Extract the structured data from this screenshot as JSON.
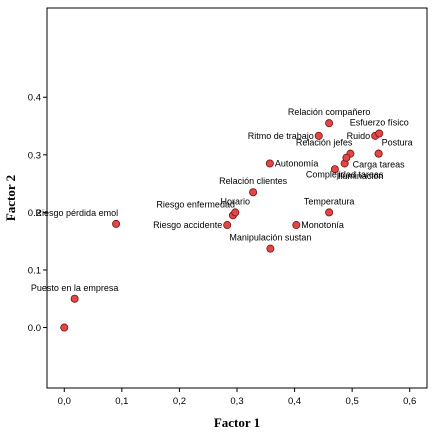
{
  "chart_data": {
    "type": "scatter",
    "title": "",
    "xlabel": "Factor 1",
    "ylabel": "Factor 2",
    "xlim": [
      -0.03,
      0.63
    ],
    "ylim": [
      -0.105,
      0.555
    ],
    "xticks": [
      {
        "v": 0.0,
        "label": "0,0"
      },
      {
        "v": 0.1,
        "label": "0,1"
      },
      {
        "v": 0.2,
        "label": "0,2"
      },
      {
        "v": 0.3,
        "label": "0,3"
      },
      {
        "v": 0.4,
        "label": "0,4"
      },
      {
        "v": 0.5,
        "label": "0,5"
      },
      {
        "v": 0.6,
        "label": "0,6"
      }
    ],
    "yticks": [
      {
        "v": 0.0,
        "label": "0.0"
      },
      {
        "v": 0.1,
        "label": "0.1"
      },
      {
        "v": 0.2,
        "label": "0.2"
      },
      {
        "v": 0.3,
        "label": "0.3"
      },
      {
        "v": 0.4,
        "label": "0.4"
      }
    ],
    "grid": false,
    "marker_color": "#e04848",
    "marker_edge": "#7a1010",
    "points": [
      {
        "label": "",
        "x": 0.0,
        "y": 0.0,
        "anchor": "none"
      },
      {
        "label": "Puesto en la empresa",
        "x": 0.018,
        "y": 0.05,
        "anchor": "above"
      },
      {
        "label": "Riesgo pérdida emol",
        "x": 0.09,
        "y": 0.18,
        "anchor": "above-left"
      },
      {
        "label": "Riesgo accidente",
        "x": 0.283,
        "y": 0.178,
        "anchor": "left"
      },
      {
        "label": "Riesgo enfermedad",
        "x": 0.293,
        "y": 0.195,
        "anchor": "above-left"
      },
      {
        "label": "Horario",
        "x": 0.297,
        "y": 0.2,
        "anchor": "above"
      },
      {
        "label": "Relación clientes",
        "x": 0.328,
        "y": 0.235,
        "anchor": "above"
      },
      {
        "label": "Manipulación sustan",
        "x": 0.358,
        "y": 0.137,
        "anchor": "above"
      },
      {
        "label": "Autonomía",
        "x": 0.357,
        "y": 0.285,
        "anchor": "right"
      },
      {
        "label": "Monotonía",
        "x": 0.403,
        "y": 0.178,
        "anchor": "right"
      },
      {
        "label": "Ritmo de trabajo",
        "x": 0.442,
        "y": 0.333,
        "anchor": "left"
      },
      {
        "label": "Relación compañero",
        "x": 0.46,
        "y": 0.355,
        "anchor": "above"
      },
      {
        "label": "Temperatura",
        "x": 0.46,
        "y": 0.2,
        "anchor": "above"
      },
      {
        "label": "Relación jefes",
        "x": 0.497,
        "y": 0.302,
        "anchor": "above-left"
      },
      {
        "label": "Iluminación",
        "x": 0.47,
        "y": 0.275,
        "anchor": "below-right"
      },
      {
        "label": "Complejidad tareas",
        "x": 0.487,
        "y": 0.285,
        "anchor": "below"
      },
      {
        "label": "",
        "x": 0.49,
        "y": 0.295,
        "anchor": "none"
      },
      {
        "label": "Ruido",
        "x": 0.54,
        "y": 0.333,
        "anchor": "left"
      },
      {
        "label": "Esfuerzo físico",
        "x": 0.547,
        "y": 0.337,
        "anchor": "above"
      },
      {
        "label": "Postura",
        "x": 0.546,
        "y": 0.302,
        "anchor": "above-right"
      },
      {
        "label": "Carga tareas",
        "x": 0.546,
        "y": 0.302,
        "anchor": "below"
      }
    ]
  }
}
